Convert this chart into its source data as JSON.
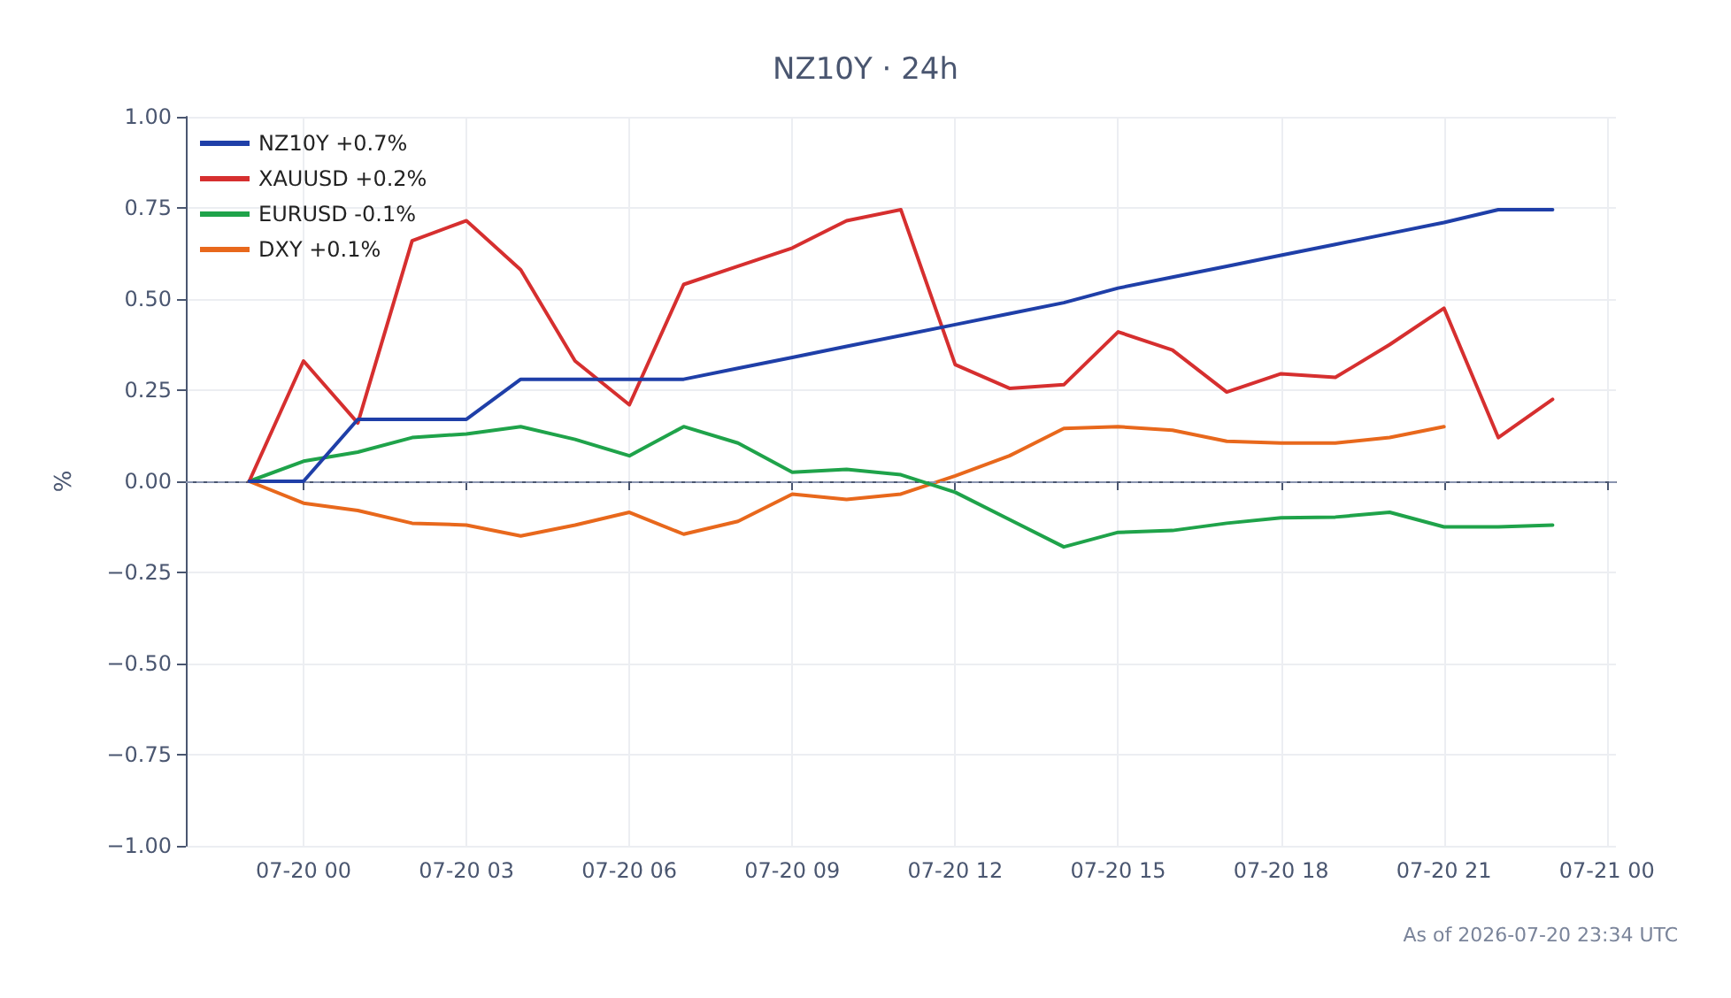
{
  "chart_data": {
    "type": "line",
    "title": "NZ10Y · 24h",
    "ylabel": "%",
    "x": [
      "2026-07-19T23:00",
      "2026-07-20T00:00",
      "2026-07-20T01:00",
      "2026-07-20T02:00",
      "2026-07-20T03:00",
      "2026-07-20T04:00",
      "2026-07-20T05:00",
      "2026-07-20T06:00",
      "2026-07-20T07:00",
      "2026-07-20T08:00",
      "2026-07-20T09:00",
      "2026-07-20T10:00",
      "2026-07-20T11:00",
      "2026-07-20T12:00",
      "2026-07-20T13:00",
      "2026-07-20T14:00",
      "2026-07-20T15:00",
      "2026-07-20T16:00",
      "2026-07-20T17:00",
      "2026-07-20T18:00",
      "2026-07-20T19:00",
      "2026-07-20T20:00",
      "2026-07-20T21:00",
      "2026-07-20T22:00",
      "2026-07-20T23:00"
    ],
    "series": [
      {
        "name": "NZ10Y +0.7%",
        "color": "#1f3fa8",
        "values": [
          0,
          0,
          0.17,
          0.17,
          0.17,
          0.28,
          0.28,
          0.28,
          0.28,
          0.31,
          0.34,
          0.37,
          0.4,
          0.43,
          0.46,
          0.49,
          0.53,
          0.56,
          0.59,
          0.62,
          0.65,
          0.68,
          0.71,
          0.745,
          0.745
        ]
      },
      {
        "name": "XAUUSD +0.2%",
        "color": "#d62f2f",
        "values": [
          0,
          0.33,
          0.16,
          0.66,
          0.715,
          0.58,
          0.33,
          0.21,
          0.54,
          0.59,
          0.64,
          0.715,
          0.745,
          0.32,
          0.255,
          0.265,
          0.41,
          0.36,
          0.245,
          0.295,
          0.285,
          0.375,
          0.475,
          0.12,
          0.225
        ]
      },
      {
        "name": "EURUSD -0.1%",
        "color": "#1fa34a",
        "values": [
          0,
          0.055,
          0.08,
          0.12,
          0.13,
          0.15,
          0.115,
          0.07,
          0.15,
          0.105,
          0.025,
          0.033,
          0.018,
          -0.03,
          -0.105,
          -0.18,
          -0.14,
          -0.135,
          -0.115,
          -0.1,
          -0.098,
          -0.085,
          -0.125,
          -0.125,
          -0.12
        ]
      },
      {
        "name": "DXY +0.1%",
        "color": "#e8681c",
        "values": [
          0,
          -0.06,
          -0.08,
          -0.115,
          -0.12,
          -0.15,
          -0.12,
          -0.085,
          -0.145,
          -0.11,
          -0.035,
          -0.05,
          -0.035,
          0.015,
          0.07,
          0.145,
          0.15,
          0.14,
          0.11,
          0.105,
          0.105,
          0.12,
          0.15,
          null,
          null
        ]
      }
    ],
    "xlim": [
      "2026-07-19T21:50",
      "2026-07-21T00:10"
    ],
    "xticks": [
      {
        "value": "2026-07-20T00:00",
        "label": "07-20 00"
      },
      {
        "value": "2026-07-20T03:00",
        "label": "07-20 03"
      },
      {
        "value": "2026-07-20T06:00",
        "label": "07-20 06"
      },
      {
        "value": "2026-07-20T09:00",
        "label": "07-20 09"
      },
      {
        "value": "2026-07-20T12:00",
        "label": "07-20 12"
      },
      {
        "value": "2026-07-20T15:00",
        "label": "07-20 15"
      },
      {
        "value": "2026-07-20T18:00",
        "label": "07-20 18"
      },
      {
        "value": "2026-07-20T21:00",
        "label": "07-20 21"
      },
      {
        "value": "2026-07-21T00:00",
        "label": "07-21 00"
      }
    ],
    "ylim": [
      -1,
      1
    ],
    "yticks": [
      {
        "value": -1,
        "label": "−1.00"
      },
      {
        "value": -0.75,
        "label": "−0.75"
      },
      {
        "value": -0.5,
        "label": "−0.50"
      },
      {
        "value": -0.25,
        "label": "−0.25"
      },
      {
        "value": 0,
        "label": "0.00"
      },
      {
        "value": 0.25,
        "label": "0.25"
      },
      {
        "value": 0.5,
        "label": "0.50"
      },
      {
        "value": 0.75,
        "label": "0.75"
      },
      {
        "value": 1,
        "label": "1.00"
      }
    ],
    "ref_lines": [
      {
        "axis": "y",
        "value": 0,
        "color": "#8a94b0",
        "line_style": "dashed"
      }
    ],
    "grid": true,
    "legend": "top left",
    "marker": "none",
    "line_style": "solid",
    "annotations": [
      "As of 2026-07-20 23:34 UTC"
    ]
  }
}
